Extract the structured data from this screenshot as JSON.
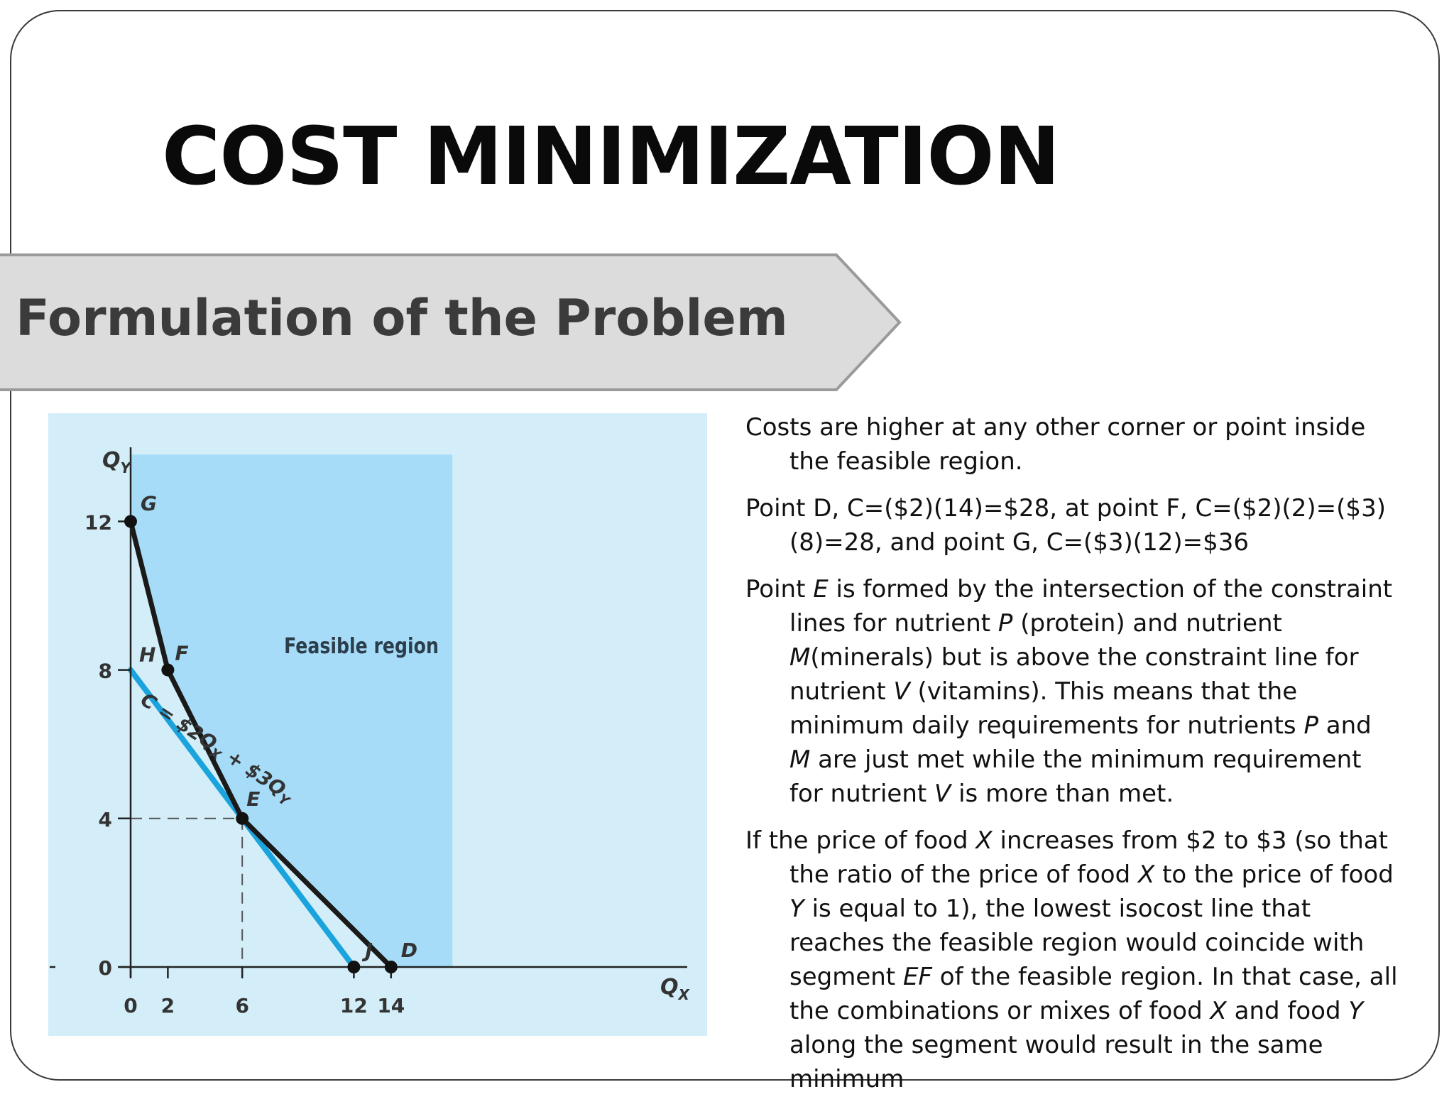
{
  "slide": {
    "title": "COST MINIMIZATION",
    "subtitle": "Formulation of the Problem",
    "colors": {
      "banner_fill": "#dcdcdc",
      "banner_stroke": "#9a9a9a",
      "region_fill": "#a6dcf8",
      "panel_bg": "#d3eef9",
      "isocost_line": "#1aa3dc",
      "boundary_line": "#1a1a1a"
    }
  },
  "paragraphs": [
    [
      {
        "t": "Costs are higher at any other corner or point inside the feasible region."
      }
    ],
    [
      {
        "t": "Point D, C=($2)(14)=$28, at point F, C=($2)(2)=($3)(8)=28, and point G, C=($3)(12)=$36"
      }
    ],
    [
      {
        "t": "Point "
      },
      {
        "t": "E",
        "i": true
      },
      {
        "t": " is formed by the intersection of the constraint lines for nutrient "
      },
      {
        "t": "P",
        "i": true
      },
      {
        "t": " (protein) and nutrient "
      },
      {
        "t": "M",
        "i": true
      },
      {
        "t": "(minerals) but is above the constraint line for nutrient "
      },
      {
        "t": "V",
        "i": true
      },
      {
        "t": " (vitamins).  This means that the minimum daily requirements for nutrients "
      },
      {
        "t": "P",
        "i": true
      },
      {
        "t": " and "
      },
      {
        "t": "M",
        "i": true
      },
      {
        "t": " are just met while the minimum requirement for nutrient "
      },
      {
        "t": "V",
        "i": true
      },
      {
        "t": " is more than met."
      }
    ],
    [
      {
        "t": "If the price of food "
      },
      {
        "t": "X",
        "i": true
      },
      {
        "t": " increases from $2 to $3 (so that the ratio of the price of food "
      },
      {
        "t": "X",
        "i": true
      },
      {
        "t": " to the price of food "
      },
      {
        "t": "Y",
        "i": true
      },
      {
        "t": " is equal to 1), the lowest isocost line that reaches the feasible region would coincide with segment "
      },
      {
        "t": "EF",
        "i": true
      },
      {
        "t": " of the feasible region. In that case, all the combinations or mixes of food "
      },
      {
        "t": "X",
        "i": true
      },
      {
        "t": " and food "
      },
      {
        "t": "Y",
        "i": true
      },
      {
        "t": " along the segment would result in the same minimum"
      }
    ]
  ],
  "chart_data": {
    "type": "line",
    "xlabel": "Q",
    "xlabel_sub": "X",
    "ylabel": "Q",
    "ylabel_sub": "Y",
    "xlim": [
      0,
      17.6
    ],
    "ylim": [
      0,
      14.9
    ],
    "x_ticks": [
      0,
      2,
      6,
      12,
      14
    ],
    "y_ticks": [
      0,
      4,
      8,
      12
    ],
    "region_label": "Feasible region",
    "region": {
      "x": [
        0,
        17.3
      ],
      "y": [
        0,
        13.8
      ]
    },
    "series": [
      {
        "role": "feasible-boundary",
        "color": "#1a1a1a",
        "points": [
          {
            "x": 0,
            "y": 12
          },
          {
            "x": 2,
            "y": 8
          },
          {
            "x": 6,
            "y": 4
          },
          {
            "x": 14,
            "y": 0
          }
        ]
      },
      {
        "role": "isocost",
        "color": "#1aa3dc",
        "points": [
          {
            "x": 0,
            "y": 8
          },
          {
            "x": 12,
            "y": 0
          }
        ]
      }
    ],
    "isocost_label": {
      "main": "C = $2Q",
      "sub1": "X",
      "mid": " + $3Q",
      "sub2": "Y"
    },
    "labeled_points": [
      {
        "label": "G",
        "x": 0,
        "y": 12,
        "dot": true
      },
      {
        "label": "F",
        "x": 2,
        "y": 8,
        "dot": true
      },
      {
        "label": "E",
        "x": 6,
        "y": 4,
        "dot": true
      },
      {
        "label": "D",
        "x": 14,
        "y": 0,
        "dot": true
      },
      {
        "label": "J",
        "x": 12,
        "y": 0,
        "dot": true
      },
      {
        "label": "H",
        "x": 0,
        "y": 8,
        "dot": false
      }
    ],
    "guides": [
      {
        "x": 6,
        "y": 4
      }
    ]
  }
}
